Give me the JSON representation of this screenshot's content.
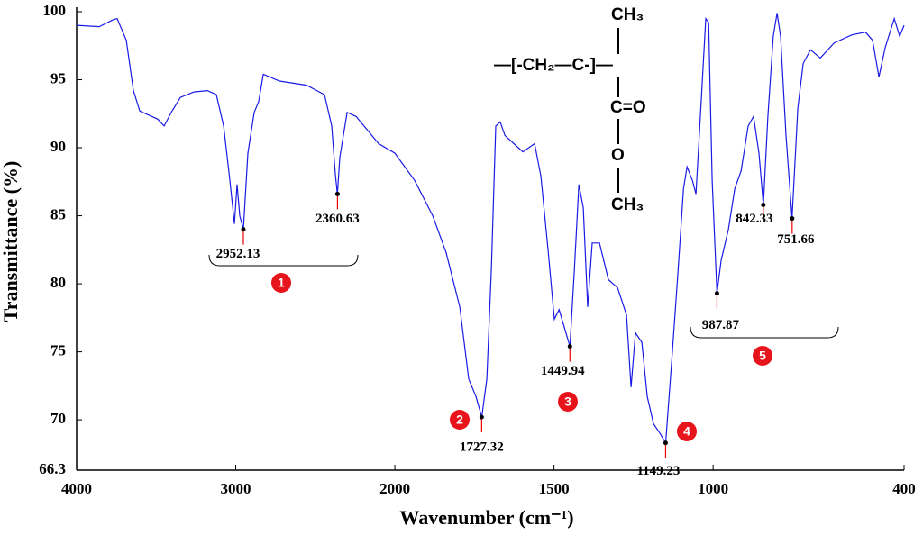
{
  "chart_data": {
    "type": "line",
    "x_label": "Wavenumber (cm⁻¹)",
    "y_label": "Transmittance (%)",
    "xlim": [
      4000,
      400
    ],
    "xticks": [
      4000,
      3000,
      2000,
      1500,
      1000,
      400
    ],
    "x_scale_change": {
      "at": 2000,
      "factor": 2
    },
    "ylim": [
      66.3,
      100
    ],
    "yticks": [
      66.3,
      70,
      75,
      80,
      85,
      90,
      95,
      100
    ],
    "color": "#1a1ae6",
    "x": [
      4000,
      3858,
      3773,
      3745,
      3688,
      3643,
      3603,
      3547,
      3490,
      3450,
      3405,
      3348,
      3263,
      3178,
      3122,
      3076,
      3037,
      3008,
      2992,
      2975,
      2952,
      2924,
      2884,
      2856,
      2827,
      2725,
      2555,
      2442,
      2397,
      2374,
      2361,
      2346,
      2300,
      2244,
      2102,
      2000,
      1938,
      1881,
      1839,
      1796,
      1768,
      1745,
      1727,
      1711,
      1697,
      1683,
      1669,
      1654,
      1626,
      1598,
      1561,
      1541,
      1518,
      1499,
      1484,
      1470,
      1450,
      1436,
      1422,
      1408,
      1394,
      1380,
      1357,
      1329,
      1300,
      1272,
      1258,
      1244,
      1224,
      1207,
      1187,
      1167,
      1149,
      1130,
      1110,
      1093,
      1082,
      1065,
      1054,
      1037,
      1023,
      1014,
      1003,
      988,
      975,
      952,
      932,
      912,
      890,
      873,
      856,
      842,
      828,
      811,
      799,
      788,
      771,
      752,
      734,
      717,
      694,
      663,
      620,
      564,
      521,
      499,
      479,
      459,
      431,
      414,
      400
    ],
    "values": [
      99.0,
      98.9,
      99.4,
      99.5,
      97.9,
      94.2,
      92.7,
      92.4,
      92.1,
      91.6,
      92.6,
      93.7,
      94.1,
      94.2,
      93.9,
      91.6,
      87.6,
      84.4,
      87.3,
      85.0,
      84.0,
      89.6,
      92.6,
      93.4,
      95.4,
      94.9,
      94.6,
      93.9,
      91.6,
      88.0,
      86.6,
      89.3,
      92.6,
      92.3,
      90.3,
      89.6,
      87.6,
      85.0,
      82.3,
      78.3,
      73.0,
      71.7,
      70.2,
      73.0,
      81.0,
      91.6,
      91.9,
      90.9,
      90.3,
      89.7,
      90.3,
      87.9,
      82.3,
      77.4,
      78.1,
      77.0,
      75.4,
      81.0,
      87.3,
      85.6,
      78.3,
      83.0,
      83.0,
      80.3,
      79.7,
      77.7,
      72.4,
      76.4,
      75.7,
      71.7,
      69.7,
      69.0,
      68.3,
      74.4,
      81.0,
      87.0,
      88.6,
      87.6,
      86.6,
      93.6,
      99.5,
      99.2,
      87.6,
      79.3,
      81.7,
      84.0,
      87.0,
      88.3,
      91.6,
      92.3,
      89.6,
      85.8,
      92.3,
      98.2,
      99.9,
      98.2,
      90.9,
      84.8,
      92.9,
      96.2,
      97.2,
      96.6,
      97.7,
      98.3,
      98.5,
      97.9,
      95.2,
      97.4,
      99.5,
      98.2,
      99.0
    ],
    "peaks": [
      {
        "wavenumber": 2952.13,
        "transmittance": 84.0
      },
      {
        "wavenumber": 2360.63,
        "transmittance": 86.6
      },
      {
        "wavenumber": 1727.32,
        "transmittance": 70.2
      },
      {
        "wavenumber": 1449.94,
        "transmittance": 75.4
      },
      {
        "wavenumber": 1149.23,
        "transmittance": 68.3
      },
      {
        "wavenumber": 987.87,
        "transmittance": 79.3
      },
      {
        "wavenumber": 842.33,
        "transmittance": 85.8
      },
      {
        "wavenumber": 751.66,
        "transmittance": 84.8
      }
    ],
    "groups": [
      "1",
      "2",
      "3",
      "4",
      "5"
    ],
    "structure": [
      "CH₃",
      "—[-CH₂—C-]—",
      "C=O",
      "O",
      "CH₃"
    ]
  }
}
